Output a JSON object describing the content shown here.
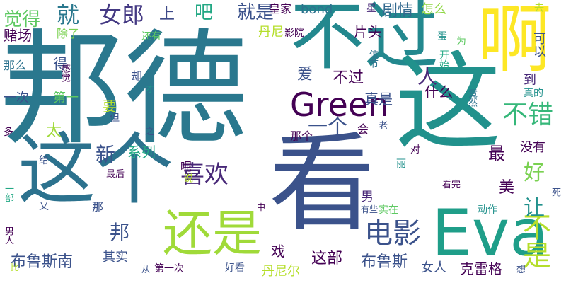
{
  "words": [
    {
      "text": "邦德",
      "weight": 1.0,
      "color": "#2a788e",
      "orientation": "horizontal"
    },
    {
      "text": "看",
      "weight": 0.92,
      "color": "#3b528b",
      "orientation": "horizontal"
    },
    {
      "text": "这个",
      "weight": 0.78,
      "color": "#2c728e",
      "orientation": "horizontal"
    },
    {
      "text": "不过",
      "weight": 0.95,
      "color": "#23888e",
      "orientation": "horizontal"
    },
    {
      "text": "这",
      "weight": 0.88,
      "color": "#21918c",
      "orientation": "vertical"
    },
    {
      "text": "啊",
      "weight": 0.85,
      "color": "#fde725",
      "orientation": "vertical"
    },
    {
      "text": "Eva",
      "weight": 0.7,
      "color": "#1f9e89",
      "orientation": "horizontal"
    },
    {
      "text": "还是",
      "weight": 0.55,
      "color": "#a0da39",
      "orientation": "horizontal"
    },
    {
      "text": "Green",
      "weight": 0.45,
      "color": "#440154",
      "orientation": "horizontal"
    },
    {
      "text": "电影",
      "weight": 0.4,
      "color": "#3b528b",
      "orientation": "horizontal"
    },
    {
      "text": "不错",
      "weight": 0.38,
      "color": "#35b779",
      "orientation": "horizontal"
    },
    {
      "text": "喜欢",
      "weight": 0.36,
      "color": "#482878",
      "orientation": "horizontal"
    },
    {
      "text": "不是",
      "weight": 0.4,
      "color": "#b5de2b",
      "orientation": "vertical"
    },
    {
      "text": "就",
      "weight": 0.3,
      "color": "#2a788e",
      "orientation": "horizontal"
    },
    {
      "text": "女郎",
      "weight": 0.3,
      "color": "#443983",
      "orientation": "horizontal"
    },
    {
      "text": "上",
      "weight": 0.25,
      "color": "#3e4a89",
      "orientation": "horizontal"
    },
    {
      "text": "吧",
      "weight": 0.25,
      "color": "#22a884",
      "orientation": "horizontal"
    },
    {
      "text": "就是",
      "weight": 0.28,
      "color": "#3b528b",
      "orientation": "horizontal"
    },
    {
      "text": "剧情",
      "weight": 0.22,
      "color": "#31688e",
      "orientation": "horizontal"
    },
    {
      "text": "怎么",
      "weight": 0.18,
      "color": "#8fd744",
      "orientation": "horizontal"
    },
    {
      "text": "皇家",
      "weight": 0.16,
      "color": "#440154",
      "orientation": "horizontal"
    },
    {
      "text": "bond",
      "weight": 0.18,
      "color": "#2c728e",
      "orientation": "horizontal"
    },
    {
      "text": "星",
      "weight": 0.14,
      "color": "#482878",
      "orientation": "horizontal"
    },
    {
      "text": "觉得",
      "weight": 0.28,
      "color": "#5ec962",
      "orientation": "horizontal"
    },
    {
      "text": "赌场",
      "weight": 0.22,
      "color": "#440154",
      "orientation": "horizontal"
    },
    {
      "text": "除了",
      "weight": 0.16,
      "color": "#7ad151",
      "orientation": "horizontal"
    },
    {
      "text": "丹尼",
      "weight": 0.18,
      "color": "#b5de2b",
      "orientation": "horizontal"
    },
    {
      "text": "影院",
      "weight": 0.14,
      "color": "#440154",
      "orientation": "horizontal"
    },
    {
      "text": "片头",
      "weight": 0.2,
      "color": "#440154",
      "orientation": "horizontal"
    },
    {
      "text": "可以",
      "weight": 0.2,
      "color": "#3b528b",
      "orientation": "vertical"
    },
    {
      "text": "去",
      "weight": 0.14,
      "color": "#b5de2b",
      "orientation": "horizontal"
    },
    {
      "text": "蛋",
      "weight": 0.13,
      "color": "#21918c",
      "orientation": "horizontal"
    },
    {
      "text": "为",
      "weight": 0.14,
      "color": "#5ec962",
      "orientation": "horizontal"
    },
    {
      "text": "开始",
      "weight": 0.14,
      "color": "#22a884",
      "orientation": "vertical"
    },
    {
      "text": "信节",
      "weight": 0.13,
      "color": "#2c728e",
      "orientation": "vertical"
    },
    {
      "text": "还有",
      "weight": 0.14,
      "color": "#5ec962",
      "orientation": "horizontal"
    },
    {
      "text": "那么",
      "weight": 0.16,
      "color": "#2c728e",
      "orientation": "horizontal"
    },
    {
      "text": "得",
      "weight": 0.18,
      "color": "#3b528b",
      "orientation": "horizontal"
    },
    {
      "text": "感觉",
      "weight": 0.13,
      "color": "#440154",
      "orientation": "vertical"
    },
    {
      "text": "却",
      "weight": 0.16,
      "color": "#3b528b",
      "orientation": "horizontal"
    },
    {
      "text": "才",
      "weight": 0.13,
      "color": "#21918c",
      "orientation": "horizontal"
    },
    {
      "text": "爱",
      "weight": 0.2,
      "color": "#3b528b",
      "orientation": "horizontal"
    },
    {
      "text": "不过",
      "weight": 0.22,
      "color": "#440154",
      "orientation": "horizontal"
    },
    {
      "text": "人",
      "weight": 0.22,
      "color": "#482878",
      "orientation": "horizontal"
    },
    {
      "text": "什么",
      "weight": 0.2,
      "color": "#440154",
      "orientation": "horizontal"
    },
    {
      "text": "真是",
      "weight": 0.2,
      "color": "#3b528b",
      "orientation": "horizontal"
    },
    {
      "text": "到",
      "weight": 0.16,
      "color": "#482878",
      "orientation": "horizontal"
    },
    {
      "text": "真的",
      "weight": 0.14,
      "color": "#21918c",
      "orientation": "horizontal"
    },
    {
      "text": "竟然",
      "weight": 0.13,
      "color": "#2c728e",
      "orientation": "vertical"
    },
    {
      "text": "一次",
      "weight": 0.16,
      "color": "#3b528b",
      "orientation": "horizontal"
    },
    {
      "text": "第一",
      "weight": 0.18,
      "color": "#5ec962",
      "orientation": "horizontal"
    },
    {
      "text": "要",
      "weight": 0.18,
      "color": "#b5de2b",
      "orientation": "horizontal"
    },
    {
      "text": "但",
      "weight": 0.14,
      "color": "#3b528b",
      "orientation": "horizontal"
    },
    {
      "text": "之",
      "weight": 0.13,
      "color": "#3b528b",
      "orientation": "horizontal"
    },
    {
      "text": "多",
      "weight": 0.14,
      "color": "#440154",
      "orientation": "horizontal"
    },
    {
      "text": "一个",
      "weight": 0.28,
      "color": "#3b528b",
      "orientation": "horizontal"
    },
    {
      "text": "那个",
      "weight": 0.16,
      "color": "#440154",
      "orientation": "horizontal"
    },
    {
      "text": "会",
      "weight": 0.16,
      "color": "#440154",
      "orientation": "horizontal"
    },
    {
      "text": "老",
      "weight": 0.13,
      "color": "#3b528b",
      "orientation": "horizontal"
    },
    {
      "text": "最",
      "weight": 0.22,
      "color": "#440154",
      "orientation": "horizontal"
    },
    {
      "text": "太",
      "weight": 0.22,
      "color": "#a0da39",
      "orientation": "horizontal"
    },
    {
      "text": "新",
      "weight": 0.3,
      "color": "#3b528b",
      "orientation": "horizontal"
    },
    {
      "text": "系列",
      "weight": 0.2,
      "color": "#22a884",
      "orientation": "horizontal"
    },
    {
      "text": "对",
      "weight": 0.14,
      "color": "#440154",
      "orientation": "horizontal"
    },
    {
      "text": "没有",
      "weight": 0.18,
      "color": "#440154",
      "orientation": "horizontal"
    },
    {
      "text": "好",
      "weight": 0.3,
      "color": "#7ad151",
      "orientation": "horizontal"
    },
    {
      "text": "给",
      "weight": 0.14,
      "color": "#3b528b",
      "orientation": "horizontal"
    },
    {
      "text": "呢",
      "weight": 0.16,
      "color": "#440154",
      "orientation": "horizontal"
    },
    {
      "text": "最后",
      "weight": 0.13,
      "color": "#440154",
      "orientation": "horizontal"
    },
    {
      "text": "丽",
      "weight": 0.14,
      "color": "#21918c",
      "orientation": "horizontal"
    },
    {
      "text": "一部",
      "weight": 0.13,
      "color": "#22a884",
      "orientation": "vertical"
    },
    {
      "text": "说",
      "weight": 0.13,
      "color": "#b5de2b",
      "orientation": "vertical"
    },
    {
      "text": "又",
      "weight": 0.14,
      "color": "#3b528b",
      "orientation": "horizontal"
    },
    {
      "text": "中",
      "weight": 0.12,
      "color": "#440154",
      "orientation": "horizontal"
    },
    {
      "text": "那",
      "weight": 0.16,
      "color": "#3b528b",
      "orientation": "horizontal"
    },
    {
      "text": "男",
      "weight": 0.18,
      "color": "#482878",
      "orientation": "horizontal"
    },
    {
      "text": "美",
      "weight": 0.22,
      "color": "#440154",
      "orientation": "horizontal"
    },
    {
      "text": "让",
      "weight": 0.3,
      "color": "#21918c",
      "orientation": "horizontal"
    },
    {
      "text": "看完",
      "weight": 0.13,
      "color": "#440154",
      "orientation": "horizontal"
    },
    {
      "text": "死",
      "weight": 0.13,
      "color": "#3b528b",
      "orientation": "vertical"
    },
    {
      "text": "男人",
      "weight": 0.13,
      "color": "#440154",
      "orientation": "vertical"
    },
    {
      "text": "邦",
      "weight": 0.28,
      "color": "#3b528b",
      "orientation": "horizontal"
    },
    {
      "text": "有些",
      "weight": 0.12,
      "color": "#3b528b",
      "orientation": "horizontal"
    },
    {
      "text": "实在",
      "weight": 0.14,
      "color": "#5ec962",
      "orientation": "horizontal"
    },
    {
      "text": "动作",
      "weight": 0.14,
      "color": "#21918c",
      "orientation": "horizontal"
    },
    {
      "text": "其实",
      "weight": 0.18,
      "color": "#3b528b",
      "orientation": "horizontal"
    },
    {
      "text": "戏",
      "weight": 0.2,
      "color": "#440154",
      "orientation": "horizontal"
    },
    {
      "text": "这部",
      "weight": 0.22,
      "color": "#440154",
      "orientation": "horizontal"
    },
    {
      "text": "布鲁斯",
      "weight": 0.22,
      "color": "#3b528b",
      "orientation": "horizontal"
    },
    {
      "text": "女人",
      "weight": 0.18,
      "color": "#3b528b",
      "orientation": "horizontal"
    },
    {
      "text": "克雷格",
      "weight": 0.2,
      "color": "#440154",
      "orientation": "horizontal"
    },
    {
      "text": "想",
      "weight": 0.13,
      "color": "#3b528b",
      "orientation": "horizontal"
    },
    {
      "text": "布鲁斯南",
      "weight": 0.22,
      "color": "#3b528b",
      "orientation": "horizontal"
    },
    {
      "text": "比",
      "weight": 0.12,
      "color": "#b5de2b",
      "orientation": "horizontal"
    },
    {
      "text": "从",
      "weight": 0.12,
      "color": "#3b528b",
      "orientation": "horizontal"
    },
    {
      "text": "第一次",
      "weight": 0.14,
      "color": "#440154",
      "orientation": "horizontal"
    },
    {
      "text": "好看",
      "weight": 0.14,
      "color": "#3b528b",
      "orientation": "horizontal"
    },
    {
      "text": "丹尼尔",
      "weight": 0.18,
      "color": "#b5de2b",
      "orientation": "horizontal"
    }
  ]
}
